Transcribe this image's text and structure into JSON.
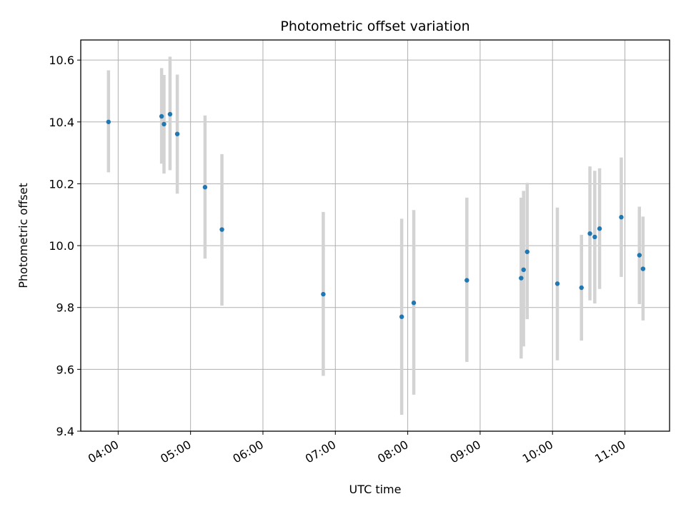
{
  "chart_data": {
    "type": "scatter",
    "title": "Photometric offset variation",
    "xlabel": "UTC time",
    "ylabel": "Photometric offset",
    "x_tick_labels": [
      "04:00",
      "05:00",
      "06:00",
      "07:00",
      "08:00",
      "09:00",
      "10:00",
      "11:00"
    ],
    "y_tick_labels": [
      "9.4",
      "9.6",
      "9.8",
      "10.0",
      "10.2",
      "10.4",
      "10.6"
    ],
    "ylim": [
      9.4,
      10.665
    ],
    "xlim": [
      "03:29",
      "11:37"
    ],
    "grid": true,
    "errorbar_color": "#d3d3d3",
    "marker_color": "#1f77b4",
    "points": [
      {
        "time": "03:52",
        "y": 10.4,
        "ylow": 10.237,
        "yhigh": 10.567
      },
      {
        "time": "04:36",
        "y": 10.418,
        "ylow": 10.265,
        "yhigh": 10.574
      },
      {
        "time": "04:38",
        "y": 10.393,
        "ylow": 10.233,
        "yhigh": 10.552
      },
      {
        "time": "04:43",
        "y": 10.425,
        "ylow": 10.244,
        "yhigh": 10.611
      },
      {
        "time": "04:49",
        "y": 10.361,
        "ylow": 10.168,
        "yhigh": 10.553
      },
      {
        "time": "05:12",
        "y": 10.189,
        "ylow": 9.958,
        "yhigh": 10.421
      },
      {
        "time": "05:26",
        "y": 10.052,
        "ylow": 9.806,
        "yhigh": 10.296
      },
      {
        "time": "06:50",
        "y": 9.843,
        "ylow": 9.579,
        "yhigh": 10.109
      },
      {
        "time": "07:55",
        "y": 9.77,
        "ylow": 9.453,
        "yhigh": 10.087
      },
      {
        "time": "08:05",
        "y": 9.815,
        "ylow": 9.518,
        "yhigh": 10.115
      },
      {
        "time": "08:49",
        "y": 9.888,
        "ylow": 9.624,
        "yhigh": 10.155
      },
      {
        "time": "09:34",
        "y": 9.895,
        "ylow": 9.635,
        "yhigh": 10.155
      },
      {
        "time": "09:36",
        "y": 9.922,
        "ylow": 9.674,
        "yhigh": 10.177
      },
      {
        "time": "09:39",
        "y": 9.98,
        "ylow": 9.762,
        "yhigh": 10.203
      },
      {
        "time": "10:04",
        "y": 9.877,
        "ylow": 9.629,
        "yhigh": 10.123
      },
      {
        "time": "10:24",
        "y": 9.864,
        "ylow": 9.693,
        "yhigh": 10.035
      },
      {
        "time": "10:31",
        "y": 10.039,
        "ylow": 9.823,
        "yhigh": 10.256
      },
      {
        "time": "10:35",
        "y": 10.028,
        "ylow": 9.813,
        "yhigh": 10.242
      },
      {
        "time": "10:39",
        "y": 10.055,
        "ylow": 9.86,
        "yhigh": 10.25
      },
      {
        "time": "10:57",
        "y": 10.092,
        "ylow": 9.899,
        "yhigh": 10.285
      },
      {
        "time": "11:12",
        "y": 9.969,
        "ylow": 9.811,
        "yhigh": 10.126
      },
      {
        "time": "11:15",
        "y": 9.925,
        "ylow": 9.758,
        "yhigh": 10.094
      }
    ]
  }
}
